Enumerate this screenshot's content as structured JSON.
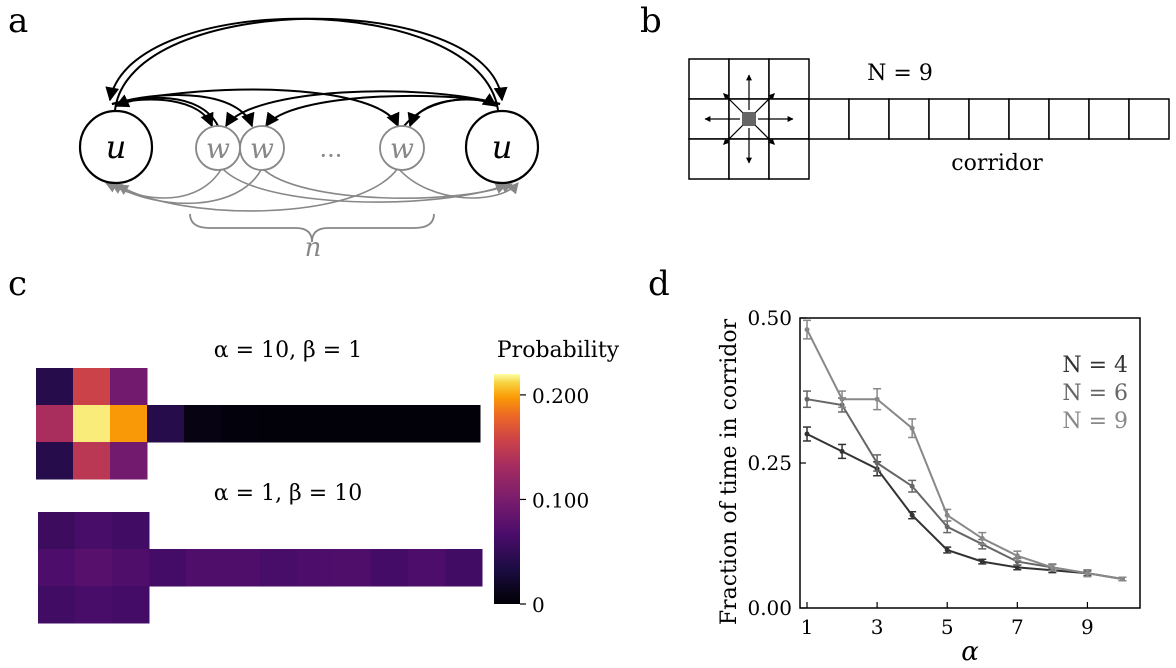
{
  "panels": {
    "a": {
      "label": "a",
      "node_u_left": "u",
      "node_u_right": "u",
      "node_w": [
        "w",
        "w",
        "w"
      ],
      "ellipsis": "···",
      "n_label": "n"
    },
    "b": {
      "label": "b",
      "n_text": "N = 9",
      "corridor_text": "corridor",
      "corridor_cells": 9
    },
    "c": {
      "label": "c",
      "top_title": "α = 10, β = 1",
      "bottom_title": "α = 1, β = 10",
      "colorbar_title": "Probability",
      "colorbar_ticks": [
        "0.200",
        "0.100",
        "0"
      ],
      "colorbar_tick_values": [
        0.2,
        0.1,
        0.0
      ],
      "colorbar_max": 0.22,
      "top_heatmap": {
        "room": [
          [
            0.03,
            0.12,
            0.07
          ],
          [
            0.1,
            0.21,
            0.17
          ],
          [
            0.03,
            0.11,
            0.07
          ]
        ],
        "corridor": [
          0.03,
          0.006,
          0.003,
          0.002,
          0.002,
          0.002,
          0.002,
          0.002,
          0.002
        ]
      },
      "bottom_heatmap": {
        "room": [
          [
            0.042,
            0.048,
            0.044
          ],
          [
            0.05,
            0.056,
            0.052
          ],
          [
            0.044,
            0.048,
            0.046
          ]
        ],
        "corridor": [
          0.046,
          0.052,
          0.052,
          0.048,
          0.05,
          0.052,
          0.046,
          0.05,
          0.044
        ]
      }
    },
    "d": {
      "label": "d"
    }
  },
  "chart_data": {
    "type": "line",
    "xlabel": "α",
    "ylabel": "Fraction of time in corridor",
    "xlim": [
      0.8,
      10.5
    ],
    "ylim": [
      0,
      0.5
    ],
    "x_ticks": [
      "1",
      "3",
      "5",
      "7",
      "9"
    ],
    "x_tick_values": [
      1,
      3,
      5,
      7,
      9
    ],
    "y_ticks": [
      "0.00",
      "0.25",
      "0.50"
    ],
    "y_tick_values": [
      0,
      0.25,
      0.5
    ],
    "legend_position": "top-right",
    "x": [
      1,
      2,
      3,
      4,
      5,
      6,
      7,
      8,
      9,
      10
    ],
    "series": [
      {
        "name": "N = 4",
        "color": "#333333",
        "values": [
          0.3,
          0.27,
          0.24,
          0.16,
          0.1,
          0.08,
          0.07,
          0.065,
          0.06,
          0.05
        ],
        "errors": [
          0.012,
          0.012,
          0.012,
          0.006,
          0.005,
          0.004,
          0.004,
          0.004,
          0.004,
          0.003
        ]
      },
      {
        "name": "N = 6",
        "color": "#666666",
        "values": [
          0.36,
          0.35,
          0.25,
          0.21,
          0.14,
          0.11,
          0.08,
          0.07,
          0.06,
          0.05
        ],
        "errors": [
          0.014,
          0.012,
          0.014,
          0.01,
          0.01,
          0.008,
          0.006,
          0.005,
          0.005,
          0.003
        ]
      },
      {
        "name": "N = 9",
        "color": "#888888",
        "values": [
          0.48,
          0.36,
          0.36,
          0.31,
          0.16,
          0.12,
          0.09,
          0.07,
          0.06,
          0.05
        ],
        "errors": [
          0.016,
          0.014,
          0.018,
          0.016,
          0.01,
          0.01,
          0.008,
          0.006,
          0.006,
          0.003
        ]
      }
    ]
  }
}
